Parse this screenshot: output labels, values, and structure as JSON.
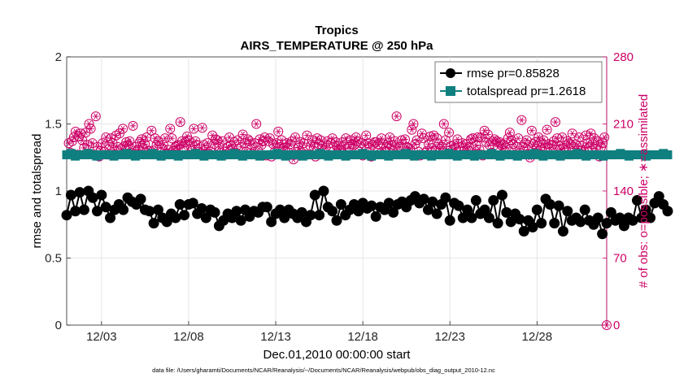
{
  "chart_data": {
    "type": "line",
    "title": "Tropics",
    "subtitle": "AIRS_TEMPERATURE @ 250 hPa",
    "xlabel": "Dec.01,2010 00:00:00 start",
    "ylabel": "rmse and totalspread",
    "ylabel_right": "# of obs: o=possible; ∗=assimilated",
    "footnote": "data file: /Users/gharamti/Documents/NCAR/Reanalysis/~/Documents/NCAR/Reanalysis/webpub/obs_diag_output_2010-12.nc",
    "x_range": [
      1,
      32
    ],
    "x_ticks": [
      3,
      8,
      13,
      18,
      23,
      28
    ],
    "x_tick_labels": [
      "12/03",
      "12/08",
      "12/13",
      "12/18",
      "12/23",
      "12/28"
    ],
    "ylim": [
      0,
      2
    ],
    "y_ticks": [
      0,
      0.5,
      1,
      1.5,
      2
    ],
    "y_tick_labels": [
      "0",
      "0.5",
      "1",
      "1.5",
      "2"
    ],
    "ylim_right": [
      0,
      280
    ],
    "y_right_ticks": [
      0,
      70,
      140,
      210,
      280
    ],
    "y_right_tick_labels": [
      "0",
      "70",
      "140",
      "210",
      "280"
    ],
    "x_start": 1,
    "x_step": 0.25,
    "series": [
      {
        "name": "rmse pr=0.85828",
        "color": "#000000",
        "marker": "circle",
        "values": [
          0.82,
          0.97,
          0.85,
          0.99,
          0.86,
          1.0,
          0.95,
          0.85,
          0.97,
          0.88,
          0.8,
          0.86,
          0.9,
          0.86,
          0.95,
          0.92,
          0.9,
          0.94,
          0.86,
          0.85,
          0.76,
          0.86,
          0.8,
          0.77,
          0.83,
          0.8,
          0.9,
          0.82,
          0.9,
          0.91,
          0.83,
          0.87,
          0.8,
          0.86,
          0.84,
          0.74,
          0.78,
          0.83,
          0.8,
          0.85,
          0.78,
          0.86,
          0.81,
          0.85,
          0.84,
          0.88,
          0.88,
          0.77,
          0.83,
          0.86,
          0.8,
          0.86,
          0.83,
          0.8,
          0.84,
          0.77,
          0.82,
          0.97,
          0.82,
          1.0,
          0.88,
          0.85,
          0.78,
          0.9,
          0.82,
          0.86,
          0.9,
          0.85,
          0.91,
          0.87,
          0.89,
          0.81,
          0.88,
          0.86,
          0.91,
          0.84,
          0.9,
          0.92,
          0.88,
          0.93,
          0.96,
          0.91,
          0.94,
          0.86,
          0.92,
          0.83,
          0.9,
          0.95,
          0.78,
          0.91,
          0.89,
          0.8,
          0.86,
          0.8,
          0.93,
          0.83,
          0.86,
          0.8,
          0.93,
          0.76,
          0.97,
          0.84,
          0.77,
          0.83,
          0.79,
          0.7,
          0.78,
          0.73,
          0.86,
          0.76,
          0.94,
          0.9,
          0.76,
          0.89,
          0.7,
          0.85,
          0.78,
          0.8,
          0.77,
          0.86,
          0.78,
          0.75,
          0.8,
          0.68,
          0.76,
          0.84,
          0.78,
          0.8,
          0.74,
          0.8,
          0.78,
          0.93,
          0.8,
          0.86,
          0.8,
          0.91,
          0.96,
          0.9,
          0.85
        ]
      },
      {
        "name": "totalspread pr=1.2618",
        "color": "#0f7f7f",
        "marker": "square",
        "values": [
          1.27,
          1.28,
          1.26,
          1.27,
          1.27,
          1.28,
          1.27,
          1.26,
          1.27,
          1.27,
          1.27,
          1.26,
          1.27,
          1.27,
          1.28,
          1.27,
          1.26,
          1.27,
          1.27,
          1.27,
          1.28,
          1.27,
          1.26,
          1.27,
          1.27,
          1.27,
          1.26,
          1.27,
          1.27,
          1.27,
          1.28,
          1.27,
          1.26,
          1.27,
          1.27,
          1.27,
          1.26,
          1.27,
          1.27,
          1.28,
          1.27,
          1.26,
          1.27,
          1.27,
          1.27,
          1.26,
          1.27,
          1.27,
          1.27,
          1.28,
          1.27,
          1.26,
          1.27,
          1.27,
          1.27,
          1.26,
          1.27,
          1.27,
          1.27,
          1.28,
          1.27,
          1.26,
          1.27,
          1.27,
          1.27,
          1.26,
          1.27,
          1.27,
          1.27,
          1.28,
          1.27,
          1.26,
          1.27,
          1.27,
          1.27,
          1.26,
          1.27,
          1.27,
          1.27,
          1.28,
          1.27,
          1.26,
          1.27,
          1.27,
          1.27,
          1.26,
          1.27,
          1.27,
          1.27,
          1.28,
          1.27,
          1.26,
          1.27,
          1.27,
          1.27,
          1.26,
          1.27,
          1.27,
          1.27,
          1.28,
          1.27,
          1.26,
          1.27,
          1.27,
          1.27,
          1.26,
          1.27,
          1.27,
          1.27,
          1.28,
          1.27,
          1.26,
          1.27,
          1.27,
          1.27,
          1.26,
          1.27,
          1.27,
          1.27,
          1.28,
          1.27,
          1.26,
          1.27,
          1.27,
          1.27,
          1.26,
          1.27,
          1.27,
          1.27,
          1.28,
          1.27,
          1.26,
          1.27,
          1.27,
          1.27,
          1.26,
          1.27,
          1.27,
          1.27,
          1.28,
          1.27
        ]
      },
      {
        "name": "# of obs (possible / assimilated)",
        "color": "#cc0066",
        "marker": "circle-star",
        "axis": "right",
        "values": [
          190,
          180,
          192,
          196,
          202,
          178,
          197,
          200,
          193,
          185,
          201,
          188,
          210,
          205,
          190,
          178,
          218,
          186,
          176,
          182,
          190,
          181,
          196,
          178,
          188,
          195,
          190,
          183,
          198,
          186,
          200,
          184,
          205,
          187,
          191,
          188,
          192,
          180,
          208,
          186,
          181,
          183,
          191,
          194,
          185,
          189,
          196,
          182,
          182,
          203,
          182,
          195,
          188,
          192,
          177,
          185,
          188,
          195,
          179,
          183,
          205,
          195,
          182,
          186,
          187,
          188,
          212,
          192,
          186,
          191,
          197,
          193,
          187,
          182,
          205,
          192,
          188,
          181,
          180,
          206,
          188,
          183,
          190,
          179,
          181,
          198,
          189,
          194,
          193,
          186,
          180,
          192,
          181,
          178,
          186,
          196,
          188,
          184,
          191,
          180,
          193,
          178,
          186,
          199,
          190,
          181,
          194,
          192,
          184,
          179,
          190,
          210,
          182,
          194,
          188,
          192,
          196,
          177,
          192,
          195,
          176,
          189,
          181,
          190,
          202,
          186,
          193,
          185,
          182,
          190,
          180,
          189,
          192,
          173,
          196,
          181,
          185,
          191,
          180,
          190,
          178,
          198,
          178,
          187,
          193,
          186,
          176,
          195,
          189,
          193,
          187,
          182,
          185,
          192,
          177,
          190,
          195,
          182,
          191,
          187,
          184,
          182,
          191,
          188,
          195,
          180,
          186,
          193,
          189,
          188,
          196,
          192,
          181,
          190,
          177,
          188,
          198,
          190,
          185,
          176,
          188,
          191,
          191,
          189,
          179,
          195,
          189,
          181,
          186,
          190,
          196,
          188,
          182,
          192,
          218,
          186,
          186,
          193,
          179,
          194,
          186,
          185,
          184,
          204,
          210,
          189,
          193,
          181,
          177,
          200,
          195,
          180,
          182,
          189,
          197,
          185,
          198,
          182,
          195,
          189,
          184,
          186,
          210,
          193,
          182,
          201,
          187,
          179,
          188,
          185,
          194,
          186,
          178,
          190,
          182,
          189,
          183,
          186,
          194,
          195,
          178,
          188,
          196,
          183,
          196,
          177,
          203,
          191,
          199,
          188,
          180,
          192,
          194,
          192,
          186,
          191,
          188,
          189,
          182,
          185,
          195,
          201,
          193,
          189,
          178,
          186,
          195,
          180,
          214,
          186,
          190,
          193,
          183,
          175,
          203,
          189,
          191,
          184,
          196,
          183,
          190,
          193,
          185,
          204,
          189,
          181,
          188,
          192,
          212,
          195,
          187,
          184,
          196,
          185,
          180,
          192,
          190,
          189,
          200,
          186,
          189,
          183,
          196,
          182,
          187,
          181,
          198,
          190,
          186,
          200,
          189,
          195,
          184,
          192,
          176,
          186,
          190,
          196
        ]
      }
    ],
    "obs_edge_marker": {
      "x": 32,
      "value": 0
    }
  }
}
